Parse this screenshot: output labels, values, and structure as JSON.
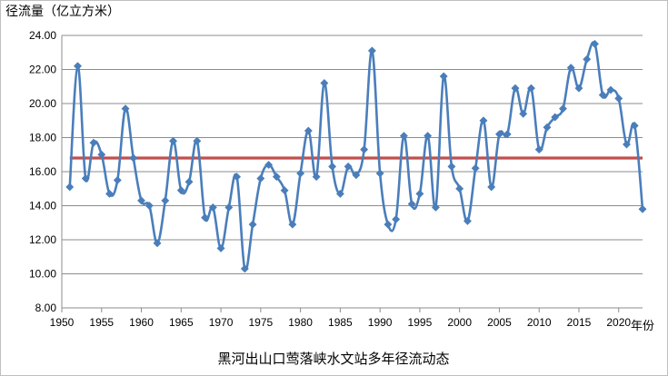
{
  "chart_data": {
    "type": "line",
    "ylabel": "径流量（亿立方米）",
    "xunit": "年份",
    "caption": "黑河出山口莺落峡水文站多年径流动态",
    "xlim": [
      1950,
      2023
    ],
    "ylim": [
      8,
      24
    ],
    "ytick_values": [
      8,
      10,
      12,
      14,
      16,
      18,
      20,
      22,
      24
    ],
    "ytick_labels": [
      "8.00",
      "10.00",
      "12.00",
      "14.00",
      "16.00",
      "18.00",
      "20.00",
      "22.00",
      "24.00"
    ],
    "xtick_values": [
      1950,
      1955,
      1960,
      1965,
      1970,
      1975,
      1980,
      1985,
      1990,
      1995,
      2000,
      2005,
      2010,
      2015,
      2020
    ],
    "xtick_labels": [
      "1950",
      "1955",
      "1960",
      "1965",
      "1970",
      "1975",
      "1980",
      "1985",
      "1990",
      "1995",
      "2000",
      "2005",
      "2010",
      "2015",
      "2020"
    ],
    "grid": true,
    "series": [
      {
        "color": "#4a7ebb",
        "marker": "diamond",
        "x": [
          1951,
          1952,
          1953,
          1954,
          1955,
          1956,
          1957,
          1958,
          1959,
          1960,
          1961,
          1962,
          1963,
          1964,
          1965,
          1966,
          1967,
          1968,
          1969,
          1970,
          1971,
          1972,
          1973,
          1974,
          1975,
          1976,
          1977,
          1978,
          1979,
          1980,
          1981,
          1982,
          1983,
          1984,
          1985,
          1986,
          1987,
          1988,
          1989,
          1990,
          1991,
          1992,
          1993,
          1994,
          1995,
          1996,
          1997,
          1998,
          1999,
          2000,
          2001,
          2002,
          2003,
          2004,
          2005,
          2006,
          2007,
          2008,
          2009,
          2010,
          2011,
          2012,
          2013,
          2014,
          2015,
          2016,
          2017,
          2018,
          2019,
          2020,
          2021,
          2022,
          2023
        ],
        "values": [
          15.1,
          22.2,
          15.6,
          17.7,
          17.0,
          14.7,
          15.5,
          19.7,
          16.8,
          14.3,
          14.0,
          11.8,
          14.3,
          17.8,
          14.9,
          15.4,
          17.8,
          13.3,
          13.9,
          11.5,
          13.9,
          15.7,
          10.3,
          12.9,
          15.6,
          16.4,
          15.7,
          14.9,
          12.9,
          15.9,
          18.4,
          15.7,
          21.2,
          16.3,
          14.7,
          16.3,
          15.8,
          17.3,
          23.1,
          15.9,
          12.9,
          13.2,
          18.1,
          14.1,
          14.7,
          18.1,
          13.9,
          21.6,
          16.3,
          15.0,
          13.1,
          16.2,
          19.0,
          15.1,
          18.2,
          18.2,
          20.9,
          19.4,
          20.9,
          17.3,
          18.6,
          19.2,
          19.7,
          22.1,
          20.9,
          22.6,
          23.5,
          20.5,
          20.8,
          20.3,
          17.6,
          18.7,
          13.8
        ]
      },
      {
        "color": "#c0504d",
        "x": [
          1951,
          2023
        ],
        "values": [
          16.8,
          16.8
        ]
      }
    ]
  }
}
